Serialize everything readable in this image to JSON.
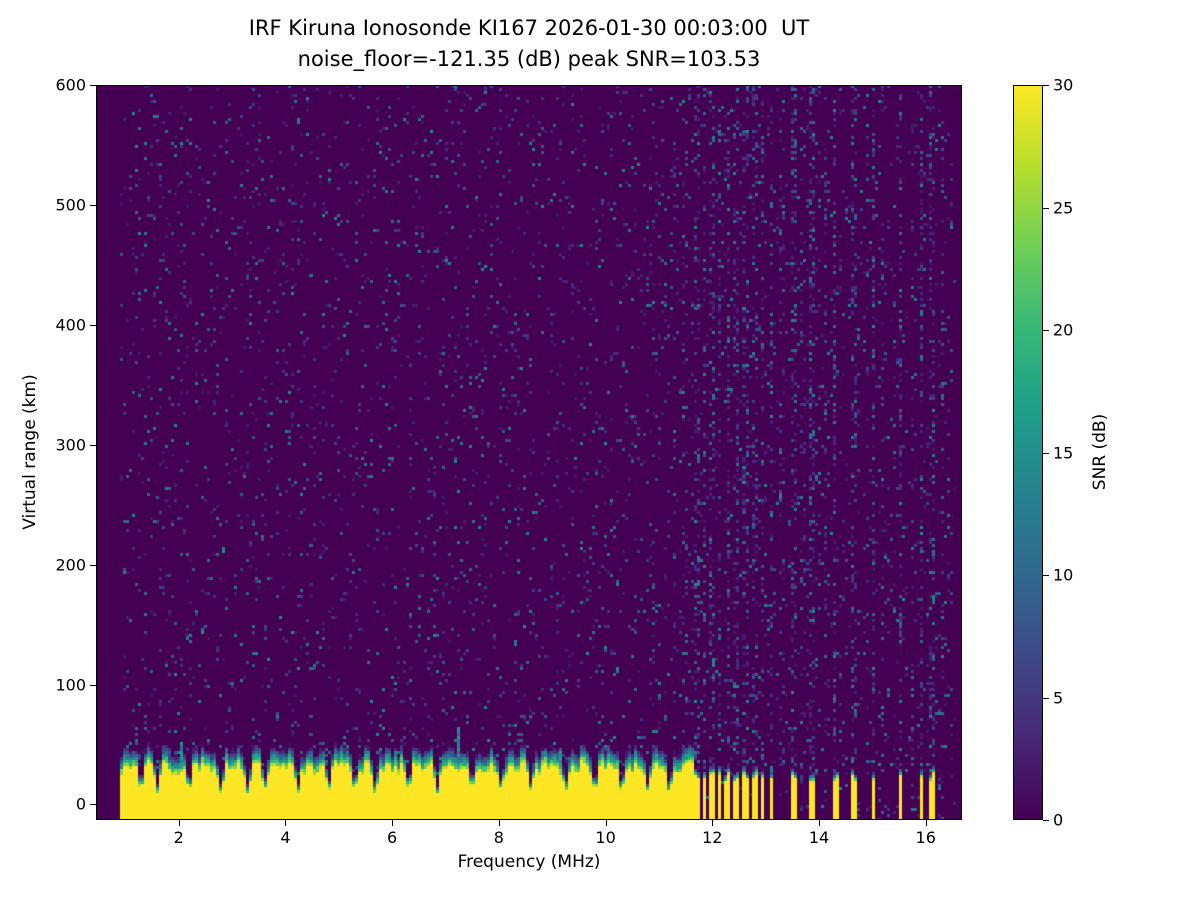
{
  "chart_data": {
    "type": "heatmap",
    "title": "IRF Kiruna Ionosonde KI167 2026-01-30 00:03:00  UT",
    "subtitle": "noise_floor=-121.35 (dB) peak SNR=103.53",
    "station": "IRF Kiruna Ionosonde KI167",
    "timestamp_ut": "2026-01-30 00:03:00",
    "noise_floor_db": -121.35,
    "peak_snr_db": 103.53,
    "xlabel": "Frequency (MHz)",
    "ylabel": "Virtual range (km)",
    "xlim": [
      0.45,
      16.68
    ],
    "ylim": [
      -13,
      600
    ],
    "x_ticks": [
      2,
      4,
      6,
      8,
      10,
      12,
      14,
      16
    ],
    "y_ticks": [
      0,
      100,
      200,
      300,
      400,
      500,
      600
    ],
    "grid": false,
    "colorbar": {
      "label": "SNR (dB)",
      "ticks": [
        0,
        5,
        10,
        15,
        20,
        25,
        30
      ],
      "vmin": 0,
      "vmax": 30,
      "colormap": "viridis",
      "colormap_stops": [
        "#440154",
        "#482878",
        "#3e4989",
        "#31688e",
        "#26828e",
        "#1f9e89",
        "#35b779",
        "#6ece58",
        "#b5de2b",
        "#fde725"
      ]
    },
    "heatmap": {
      "data_freq_range": [
        0.88,
        16.55
      ],
      "background_snr_db": 0,
      "noise_speckle": {
        "probability": 0.055,
        "max_snr_db": 14
      },
      "ground_clutter": {
        "freq_start_mhz": 0.88,
        "freq_end_mhz": 11.68,
        "top_km_min": 25,
        "top_km_max": 36,
        "transition_km": 14,
        "snr_db": 30
      },
      "clutter_notches_mhz": [
        1.3,
        1.6,
        2.2,
        2.8,
        3.3,
        3.62,
        4.25,
        4.8,
        5.3,
        5.67,
        6.3,
        6.85,
        7.5,
        8.05,
        8.6,
        9.25,
        9.8,
        10.3,
        10.8,
        11.2
      ],
      "clutter_spikes": [
        {
          "freq_mhz": 7.25,
          "top_km": 65
        },
        {
          "freq_mhz": 2.05,
          "top_km": 52
        },
        {
          "freq_mhz": 9.15,
          "top_km": 46
        }
      ],
      "pulsed_bars_mhz": [
        11.72,
        11.86,
        12.0,
        12.14,
        12.3,
        12.46,
        12.62,
        12.78,
        12.94,
        13.1,
        13.52,
        13.86,
        14.3,
        14.64,
        15.02,
        15.52,
        15.92,
        16.12
      ],
      "bar_half_width_mhz": 0.045,
      "bar_top_km_range": [
        19,
        26
      ],
      "interference_stripes": [
        {
          "freq_mhz": 11.72,
          "intensity": 0.4
        },
        {
          "freq_mhz": 11.86,
          "intensity": 0.4
        },
        {
          "freq_mhz": 12.0,
          "intensity": 0.4
        },
        {
          "freq_mhz": 12.14,
          "intensity": 0.4
        },
        {
          "freq_mhz": 12.3,
          "intensity": 0.4
        },
        {
          "freq_mhz": 12.46,
          "intensity": 0.4
        },
        {
          "freq_mhz": 12.62,
          "intensity": 0.4
        },
        {
          "freq_mhz": 12.78,
          "intensity": 0.4
        },
        {
          "freq_mhz": 12.94,
          "intensity": 0.4
        },
        {
          "freq_mhz": 13.1,
          "intensity": 0.4
        },
        {
          "freq_mhz": 13.3,
          "intensity": 0.18
        },
        {
          "freq_mhz": 13.52,
          "intensity": 0.5
        },
        {
          "freq_mhz": 13.7,
          "intensity": 0.15
        },
        {
          "freq_mhz": 13.86,
          "intensity": 0.5
        },
        {
          "freq_mhz": 14.1,
          "intensity": 0.25
        },
        {
          "freq_mhz": 14.3,
          "intensity": 0.55
        },
        {
          "freq_mhz": 14.64,
          "intensity": 0.4
        },
        {
          "freq_mhz": 14.9,
          "intensity": 0.18
        },
        {
          "freq_mhz": 15.02,
          "intensity": 0.5
        },
        {
          "freq_mhz": 15.2,
          "intensity": 0.18
        },
        {
          "freq_mhz": 15.52,
          "intensity": 0.55
        },
        {
          "freq_mhz": 15.75,
          "intensity": 0.18
        },
        {
          "freq_mhz": 15.92,
          "intensity": 0.5
        },
        {
          "freq_mhz": 16.12,
          "intensity": 0.4
        },
        {
          "freq_mhz": 16.3,
          "intensity": 0.22
        },
        {
          "freq_mhz": 10.9,
          "intensity": 0.1
        },
        {
          "freq_mhz": 11.3,
          "intensity": 0.12
        },
        {
          "freq_mhz": 11.5,
          "intensity": 0.15
        }
      ]
    }
  }
}
